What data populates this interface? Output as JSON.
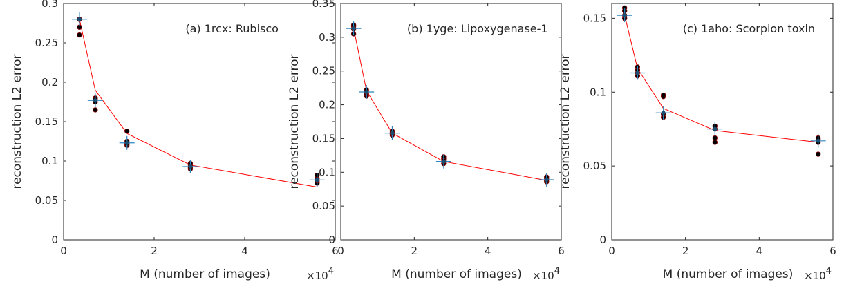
{
  "chart_data": [
    {
      "type": "scatter",
      "title": "(a) 1rcx: Rubisco",
      "xlabel": "M (number of images)",
      "ylabel": "reconstruction L2 error",
      "x_multiplier": "×10",
      "x_multiplier_exp": "4",
      "xlim": [
        0,
        6
      ],
      "ylim": [
        0,
        0.3
      ],
      "xticks": [
        0,
        2,
        4,
        6
      ],
      "xtick_labels": [
        "0",
        "2",
        "4",
        "6"
      ],
      "yticks": [
        0,
        0.05,
        0.1,
        0.15,
        0.2,
        0.25,
        0.3
      ],
      "ytick_labels": [
        "0",
        "0.05",
        "0.1",
        "0.15",
        "0.2",
        "0.25",
        "0.3"
      ],
      "colors": {
        "fit": "#ff0000",
        "mean": "#2e86c1",
        "samples": "#000000",
        "sample_edge": "#8b0000"
      },
      "x": [
        0.35,
        0.7,
        1.4,
        2.8,
        5.6
      ],
      "mean": [
        0.28,
        0.177,
        0.123,
        0.093,
        0.076
      ],
      "fit": [
        0.28,
        0.19,
        0.135,
        0.095,
        0.067
      ],
      "samples": [
        [
          0.26,
          0.27,
          0.28,
          0.28
        ],
        [
          0.165,
          0.175,
          0.18,
          0.178
        ],
        [
          0.12,
          0.125,
          0.138,
          0.122
        ],
        [
          0.09,
          0.092,
          0.095,
          0.097
        ],
        [
          0.072,
          0.075,
          0.078,
          0.082
        ]
      ]
    },
    {
      "type": "scatter",
      "title": "(b) 1yge: Lipoxygenase-1",
      "xlabel": "M (number of images)",
      "ylabel": "reconstruction L2 error",
      "x_multiplier": "×10",
      "x_multiplier_exp": "4",
      "xlim": [
        0,
        6
      ],
      "ylim": [
        0,
        0.35
      ],
      "xticks": [
        0,
        2,
        4,
        6
      ],
      "xtick_labels": [
        "0",
        "2",
        "4",
        "6"
      ],
      "yticks": [
        0,
        0.05,
        0.1,
        0.15,
        0.2,
        0.25,
        0.3,
        0.35
      ],
      "ytick_labels": [
        "0",
        "0.05",
        "0.1",
        "0.15",
        "0.2",
        "0.25",
        "0.3",
        "0.35"
      ],
      "colors": {
        "fit": "#ff0000",
        "mean": "#2e86c1",
        "samples": "#000000",
        "sample_edge": "#8b0000"
      },
      "x": [
        0.35,
        0.7,
        1.4,
        2.8,
        5.6
      ],
      "mean": [
        0.313,
        0.219,
        0.158,
        0.116,
        0.089
      ],
      "fit": [
        0.313,
        0.221,
        0.158,
        0.116,
        0.088
      ],
      "samples": [
        [
          0.305,
          0.312,
          0.316,
          0.318
        ],
        [
          0.213,
          0.216,
          0.219,
          0.222
        ],
        [
          0.155,
          0.157,
          0.159,
          0.161
        ],
        [
          0.113,
          0.116,
          0.12,
          0.123
        ],
        [
          0.086,
          0.088,
          0.091,
          0.093
        ]
      ]
    },
    {
      "type": "scatter",
      "title": "(c) 1aho: Scorpion toxin",
      "xlabel": "M (number of images)",
      "ylabel": "reconstruction L2 error",
      "x_multiplier": "×10",
      "x_multiplier_exp": "4",
      "xlim": [
        0,
        6
      ],
      "ylim": [
        0,
        0.16
      ],
      "xticks": [
        0,
        2,
        4,
        6
      ],
      "xtick_labels": [
        "0",
        "2",
        "4",
        "6"
      ],
      "yticks": [
        0,
        0.05,
        0.1,
        0.15
      ],
      "ytick_labels": [
        "0",
        "0.05",
        "0.1",
        "0.15"
      ],
      "colors": {
        "fit": "#ff0000",
        "mean": "#2e86c1",
        "samples": "#000000",
        "sample_edge": "#8b0000"
      },
      "x": [
        0.35,
        0.7,
        1.4,
        2.8,
        5.6
      ],
      "mean": [
        0.152,
        0.113,
        0.086,
        0.075,
        0.067
      ],
      "fit": [
        0.152,
        0.116,
        0.089,
        0.074,
        0.066
      ],
      "samples": [
        [
          0.15,
          0.152,
          0.155,
          0.157
        ],
        [
          0.111,
          0.113,
          0.115,
          0.117
        ],
        [
          0.083,
          0.085,
          0.097,
          0.098
        ],
        [
          0.066,
          0.069,
          0.075,
          0.077
        ],
        [
          0.058,
          0.066,
          0.068,
          0.069
        ]
      ]
    }
  ]
}
